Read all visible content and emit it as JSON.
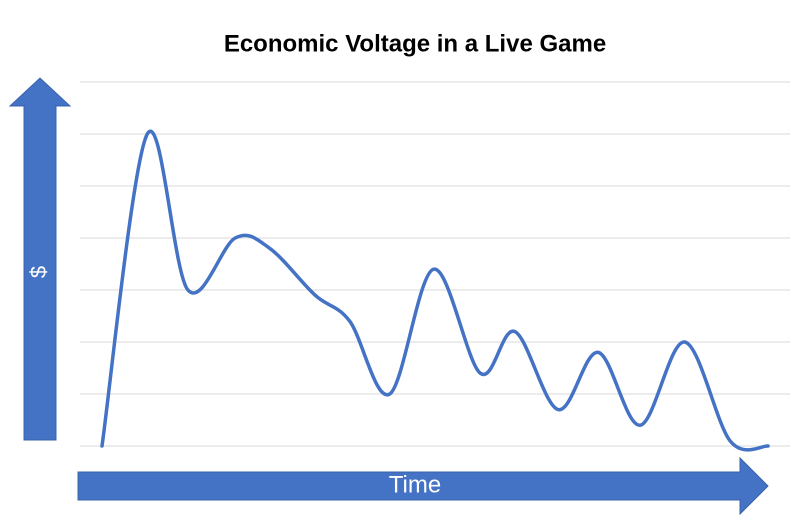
{
  "chart_data": {
    "type": "line",
    "title": "Economic Voltage in a Live Game",
    "x_label": "Time",
    "y_label": "$",
    "x": [
      0,
      6.8,
      12.9,
      20,
      25.2,
      32,
      37.2,
      43.2,
      49.8,
      56.8,
      62,
      68.5,
      74.5,
      80.8,
      87.5,
      94.3,
      100
    ],
    "values": [
      0,
      6.0,
      3.0,
      4.0,
      3.8,
      2.9,
      2.4,
      1.0,
      3.4,
      1.4,
      2.2,
      0.7,
      1.8,
      0.4,
      2.0,
      0.1,
      0
    ],
    "color": "#4472c4",
    "xlim": [
      0,
      100
    ],
    "ylim": [
      0,
      7
    ],
    "yticks": [
      0,
      1,
      2,
      3,
      4,
      5,
      6,
      7
    ],
    "grid": true
  }
}
